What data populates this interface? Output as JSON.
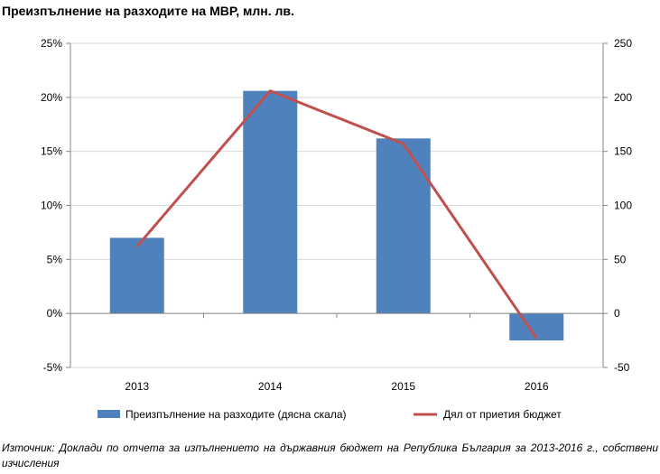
{
  "chart_data": {
    "type": "bar+line",
    "title": "Преизпълнение на разходите на МВР, млн. лв.",
    "categories": [
      "2013",
      "2014",
      "2015",
      "2016"
    ],
    "series": [
      {
        "name": "Преизпълнение на разходите (дясна скала)",
        "kind": "bar",
        "axis": "right",
        "color": "#4F81BD",
        "values": [
          70,
          206,
          162,
          -25
        ]
      },
      {
        "name": "Дял от приетия бюджет",
        "kind": "line",
        "axis": "left",
        "color": "#C0504D",
        "values": [
          6.2,
          20.6,
          15.7,
          -2.3
        ]
      }
    ],
    "left_axis": {
      "ylim": [
        -5,
        25
      ],
      "ticks": [
        25,
        20,
        15,
        10,
        5,
        0,
        -5
      ],
      "tick_labels": [
        "25%",
        "20%",
        "15%",
        "10%",
        "5%",
        "0%",
        "-5%"
      ]
    },
    "right_axis": {
      "ylim": [
        -50,
        250
      ],
      "ticks": [
        250,
        200,
        150,
        100,
        50,
        0,
        -50
      ],
      "tick_labels": [
        "250",
        "200",
        "150",
        "100",
        "50",
        "0",
        "-50"
      ]
    },
    "legend_position": "bottom",
    "gridlines": true
  },
  "source": "Източник: Доклади по отчета за изпълнението на държавния бюджет на Република България за 2013-2016 г., собствени изчисления"
}
